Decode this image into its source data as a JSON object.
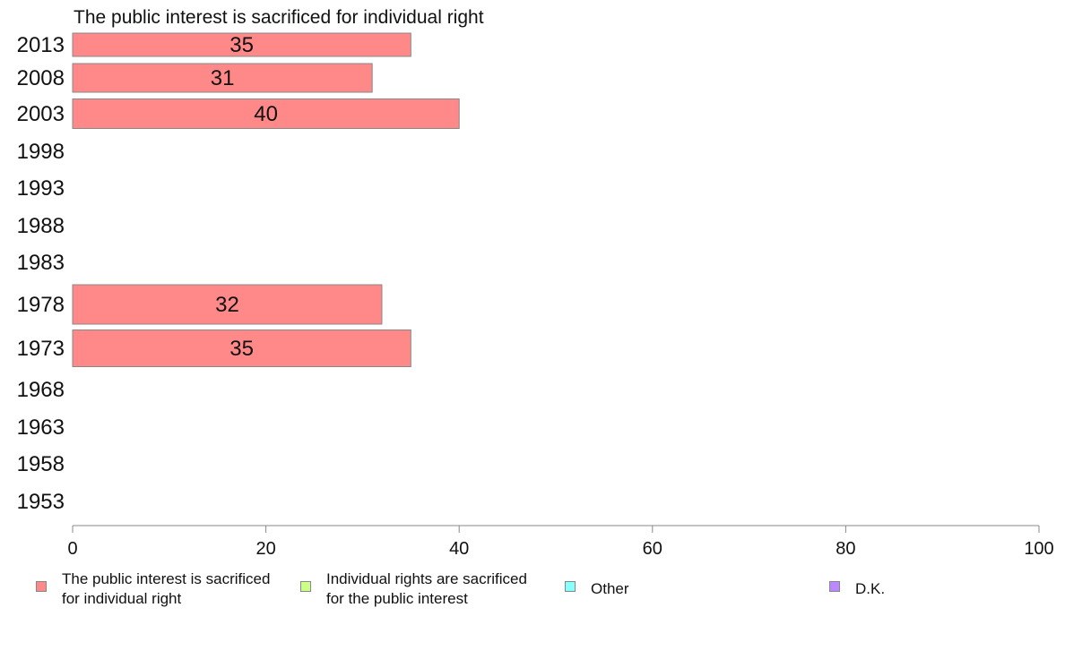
{
  "chart_data": {
    "type": "bar",
    "orientation": "horizontal",
    "title": "The public interest is sacrificed for individual right",
    "categories": [
      "2013",
      "2008",
      "2003",
      "1998",
      "1993",
      "1988",
      "1983",
      "1978",
      "1973",
      "1968",
      "1963",
      "1958",
      "1953"
    ],
    "series": [
      {
        "name": "The public interest is sacrificed for individual right",
        "color": "#ff8888",
        "values": [
          35,
          31,
          40,
          null,
          null,
          null,
          null,
          32,
          35,
          null,
          null,
          null,
          null
        ],
        "labels": [
          "35",
          "31",
          "40",
          "",
          "",
          "",
          "",
          "32",
          "35",
          "",
          "",
          "",
          ""
        ]
      }
    ],
    "xlim": [
      0,
      100
    ],
    "xticks": [
      "0",
      "20",
      "40",
      "60",
      "80",
      "100"
    ],
    "grid": false,
    "legend_position": "bottom",
    "legend": [
      {
        "label": "The public interest is sacrificed\nfor individual right",
        "color": "#ff8888"
      },
      {
        "label": "Individual rights are sacrificed\nfor the public interest",
        "color": "#ccff88"
      },
      {
        "label": "Other",
        "color": "#88ffff"
      },
      {
        "label": "D.K.",
        "color": "#bb88ff"
      }
    ]
  }
}
